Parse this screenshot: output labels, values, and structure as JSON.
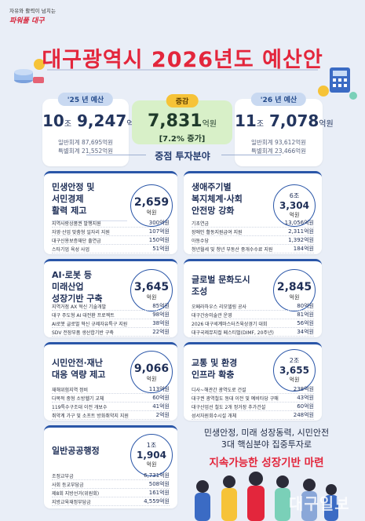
{
  "header": {
    "brand_sub": "자유와 활력이 넘치는",
    "brand_main": "파워풀 대구",
    "title": "대구광역시 2026년도 예산안"
  },
  "summary": {
    "prev": {
      "badge": "'25 년 예산",
      "value_a": "10",
      "unit_a": "조",
      "value_b": "9,247",
      "unit_b": "억원",
      "general": "일반회계 87,695억원",
      "special": "특별회계 21,552억원"
    },
    "change": {
      "badge": "증감",
      "value": "7,831",
      "unit": "억원",
      "pct": "[7.2% 증가]"
    },
    "next": {
      "badge": "'26 년 예산",
      "value_a": "11",
      "unit_a": "조",
      "value_b": "7,078",
      "unit_b": "억원",
      "general": "일반회계 93,612억원",
      "special": "특별회계 23,466억원"
    }
  },
  "section_title": "중점 투자분야",
  "categories": [
    {
      "title_lines": [
        "민생안정 및",
        "서민경제",
        "활력 제고"
      ],
      "amount": "2,659",
      "unit": "억원",
      "items": [
        {
          "label": "지역사랑상품권 발행지원",
          "value": "300억원"
        },
        {
          "label": "자영·산업 맞춤형 일자리 지원",
          "value": "107억원"
        },
        {
          "label": "대구신용보증재단 출연금",
          "value": "150억원"
        },
        {
          "label": "스타기업 육성 사업",
          "value": "51억원"
        }
      ]
    },
    {
      "title_lines": [
        "생애주기별",
        "복지체계·사회",
        "안전망 강화"
      ],
      "amount_a": "6",
      "unit_a": "조",
      "amount_b": "3,304",
      "unit": "억원",
      "items": [
        {
          "label": "기초연금",
          "value": "13,056억원"
        },
        {
          "label": "장애인 활동지원급여 지원",
          "value": "2,311억원"
        },
        {
          "label": "아동수당",
          "value": "1,392억원"
        },
        {
          "label": "청년월세 및 청년 부동산 중개수수료 지원",
          "value": "184억원"
        }
      ]
    },
    {
      "title_lines": [
        "AI·로봇 등",
        "미래산업",
        "성장기반 구축"
      ],
      "amount": "3,645",
      "unit": "억원",
      "items": [
        {
          "label": "지역거점 AX 혁신 기술개발",
          "value": "85억원"
        },
        {
          "label": "대구 주도형 AI 대전환 프로젝트",
          "value": "98억원"
        },
        {
          "label": "AI로봇 글로벌 혁신 규제자유특구 지원",
          "value": "38억원"
        },
        {
          "label": "SDV 전장부품 생산합기반 구축",
          "value": "22억원"
        }
      ]
    },
    {
      "title_lines": [
        "글로벌 문화도시",
        "조성"
      ],
      "amount": "2,845",
      "unit": "억원",
      "items": [
        {
          "label": "오페라하우스 리모델링 공사",
          "value": "80억원"
        },
        {
          "label": "대구간송미술관 운영",
          "value": "81억원"
        },
        {
          "label": "2026 대구세계마스터즈육상경기 대회",
          "value": "56억원"
        },
        {
          "label": "대구국제뮤지컬 페스티벌(DIMF, 20주년)",
          "value": "34억원"
        }
      ]
    },
    {
      "title_lines": [
        "시민안전·재난",
        "대응 역량 제고"
      ],
      "amount": "9,066",
      "unit": "억원",
      "items": [
        {
          "label": "재해위험지역 정비",
          "value": "113억원"
        },
        {
          "label": "다목적 중형 소방헬기 교체",
          "value": "60억원"
        },
        {
          "label": "119특수구조대 이전 개보수",
          "value": "41억원"
        },
        {
          "label": "취약계 가구 및 소프트 방화취약지 지원",
          "value": "2억원"
        }
      ]
    },
    {
      "title_lines": [
        "교통 및 환경",
        "인프라 확충"
      ],
      "amount_a": "2",
      "unit_a": "조",
      "amount_b": "3,655",
      "unit": "억원",
      "items": [
        {
          "label": "디사~해관간 광역도로 건설",
          "value": "238억원"
        },
        {
          "label": "대구권 광역철도 동대 이전 및 예비타당 구매",
          "value": "43억원"
        },
        {
          "label": "대구산업선 철도 2개 정거장 추가건설",
          "value": "60억원"
        },
        {
          "label": "성서자원회수시설 개체",
          "value": "248억원"
        }
      ]
    },
    {
      "title_lines": [
        "일반공공행정"
      ],
      "amount_a": "1",
      "unit_a": "조",
      "amount_b": "1,904",
      "unit": "억원",
      "items": [
        {
          "label": "조정교부금",
          "value": "6,731억원"
        },
        {
          "label": "사회 등교부담금",
          "value": "508억원"
        },
        {
          "label": "제8회 지방선거(위원회)",
          "value": "161억원"
        },
        {
          "label": "지방교육재정부담금",
          "value": "4,559억원"
        }
      ]
    }
  ],
  "conclusion": {
    "line1": "민생안정, 미래 성장동력, 시민안전",
    "line2": "3대 핵심분야 집중투자로",
    "line3": "지속가능한 성장기반 마련"
  },
  "watermark": "대구일보",
  "colors": {
    "title_red": "#e3263c",
    "navy": "#1f2f57",
    "accent_blue": "#2a56a8",
    "change_green": "#d8f0c8",
    "badge_yellow": "#f6c338"
  }
}
